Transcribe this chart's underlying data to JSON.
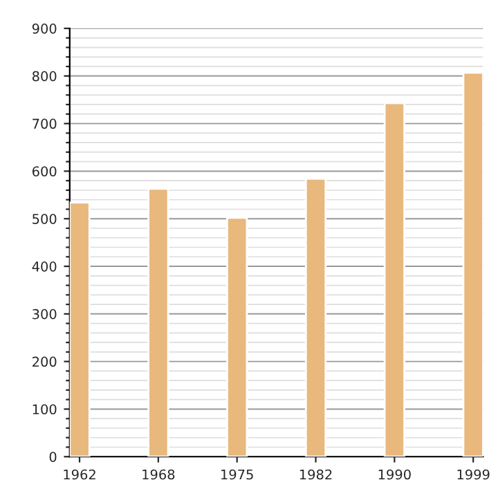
{
  "chart_data": {
    "type": "bar",
    "categories": [
      "1962",
      "1968",
      "1975",
      "1982",
      "1990",
      "1999"
    ],
    "values": [
      534,
      563,
      502,
      584,
      743,
      807
    ],
    "color": "#e8b87c",
    "ylim": [
      0,
      900
    ],
    "yticks": [
      0,
      100,
      200,
      300,
      400,
      500,
      600,
      700,
      800,
      900
    ],
    "grid": "y"
  }
}
